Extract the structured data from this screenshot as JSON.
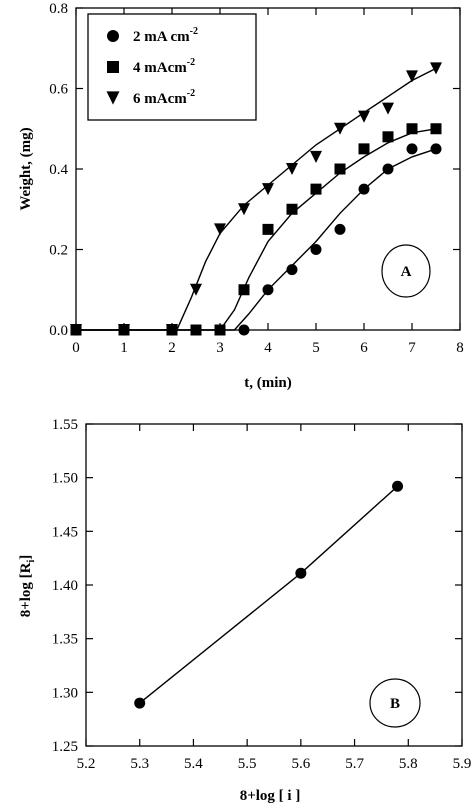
{
  "chart_data": [
    {
      "type": "scatter",
      "panel": "A",
      "xlabel": "t, (min)",
      "ylabel": "Weight, (mg)",
      "xlim": [
        0,
        8
      ],
      "ylim": [
        0,
        0.8
      ],
      "xticks": [
        0,
        1,
        2,
        3,
        4,
        5,
        6,
        7,
        8
      ],
      "yticks": [
        0.0,
        0.2,
        0.4,
        0.6,
        0.8
      ],
      "xtick_labels": [
        "0",
        "1",
        "2",
        "3",
        "4",
        "5",
        "6",
        "7",
        "8"
      ],
      "ytick_labels": [
        "0.0",
        "0.2",
        "0.4",
        "0.6",
        "0.8"
      ],
      "grid": false,
      "legend_position": "top-left",
      "annotation": "A",
      "series": [
        {
          "name": "2 mA cm",
          "name_sup": "-2",
          "marker": "circle",
          "x": [
            0,
            1,
            2,
            2.5,
            3,
            3.5,
            4,
            4.5,
            5,
            5.5,
            6,
            6.5,
            7,
            7.5
          ],
          "y": [
            0,
            0,
            0,
            0,
            0,
            0,
            0.1,
            0.15,
            0.2,
            0.25,
            0.35,
            0.4,
            0.45,
            0.45
          ],
          "fit_x": [
            0,
            3.3,
            3.6,
            4.0,
            4.5,
            5.0,
            5.5,
            6.0,
            6.5,
            7.0,
            7.5
          ],
          "fit_y": [
            0,
            0,
            0.04,
            0.1,
            0.16,
            0.22,
            0.29,
            0.35,
            0.4,
            0.43,
            0.45
          ]
        },
        {
          "name": "4 mAcm",
          "name_sup": "-2",
          "marker": "square",
          "x": [
            0,
            1,
            2,
            2.5,
            3,
            3.5,
            4,
            4.5,
            5,
            5.5,
            6,
            6.5,
            7,
            7.5
          ],
          "y": [
            0,
            0,
            0,
            0,
            0,
            0.1,
            0.25,
            0.3,
            0.35,
            0.4,
            0.45,
            0.48,
            0.5,
            0.5
          ],
          "fit_x": [
            0,
            3.0,
            3.3,
            3.6,
            4.0,
            4.5,
            5.0,
            5.5,
            6.0,
            6.5,
            7.0,
            7.5
          ],
          "fit_y": [
            0,
            0,
            0.05,
            0.13,
            0.22,
            0.29,
            0.34,
            0.39,
            0.43,
            0.465,
            0.49,
            0.5
          ]
        },
        {
          "name": "6 mAcm",
          "name_sup": "-2",
          "marker": "triangle-down",
          "x": [
            0,
            1,
            2,
            2.5,
            3,
            3.5,
            4,
            4.5,
            5,
            5.5,
            6,
            6.5,
            7,
            7.5
          ],
          "y": [
            0,
            0,
            0,
            0.1,
            0.25,
            0.3,
            0.35,
            0.4,
            0.43,
            0.5,
            0.53,
            0.55,
            0.63,
            0.65
          ],
          "fit_x": [
            0,
            2.1,
            2.4,
            2.7,
            3.0,
            3.5,
            4.0,
            4.5,
            5.0,
            5.5,
            6.0,
            6.5,
            7.0,
            7.5
          ],
          "fit_y": [
            0,
            0,
            0.08,
            0.17,
            0.24,
            0.31,
            0.36,
            0.41,
            0.46,
            0.5,
            0.54,
            0.58,
            0.62,
            0.65
          ]
        }
      ]
    },
    {
      "type": "line",
      "panel": "B",
      "xlabel": "8+log [ i ]",
      "ylabel_main": "8+log [R",
      "ylabel_sub": "i",
      "ylabel_end": "]",
      "xlim": [
        5.2,
        5.9
      ],
      "ylim": [
        1.25,
        1.55
      ],
      "xticks": [
        5.2,
        5.3,
        5.4,
        5.5,
        5.6,
        5.7,
        5.8,
        5.9
      ],
      "yticks": [
        1.25,
        1.3,
        1.35,
        1.4,
        1.45,
        1.5,
        1.55
      ],
      "xtick_labels": [
        "5.2",
        "5.3",
        "5.4",
        "5.5",
        "5.6",
        "5.7",
        "5.8",
        "5.9"
      ],
      "ytick_labels": [
        "1.25",
        "1.30",
        "1.35",
        "1.40",
        "1.45",
        "1.50",
        "1.55"
      ],
      "grid": false,
      "annotation": "B",
      "series": [
        {
          "marker": "circle",
          "x": [
            5.3,
            5.6,
            5.78
          ],
          "y": [
            1.29,
            1.411,
            1.492
          ]
        }
      ]
    }
  ]
}
